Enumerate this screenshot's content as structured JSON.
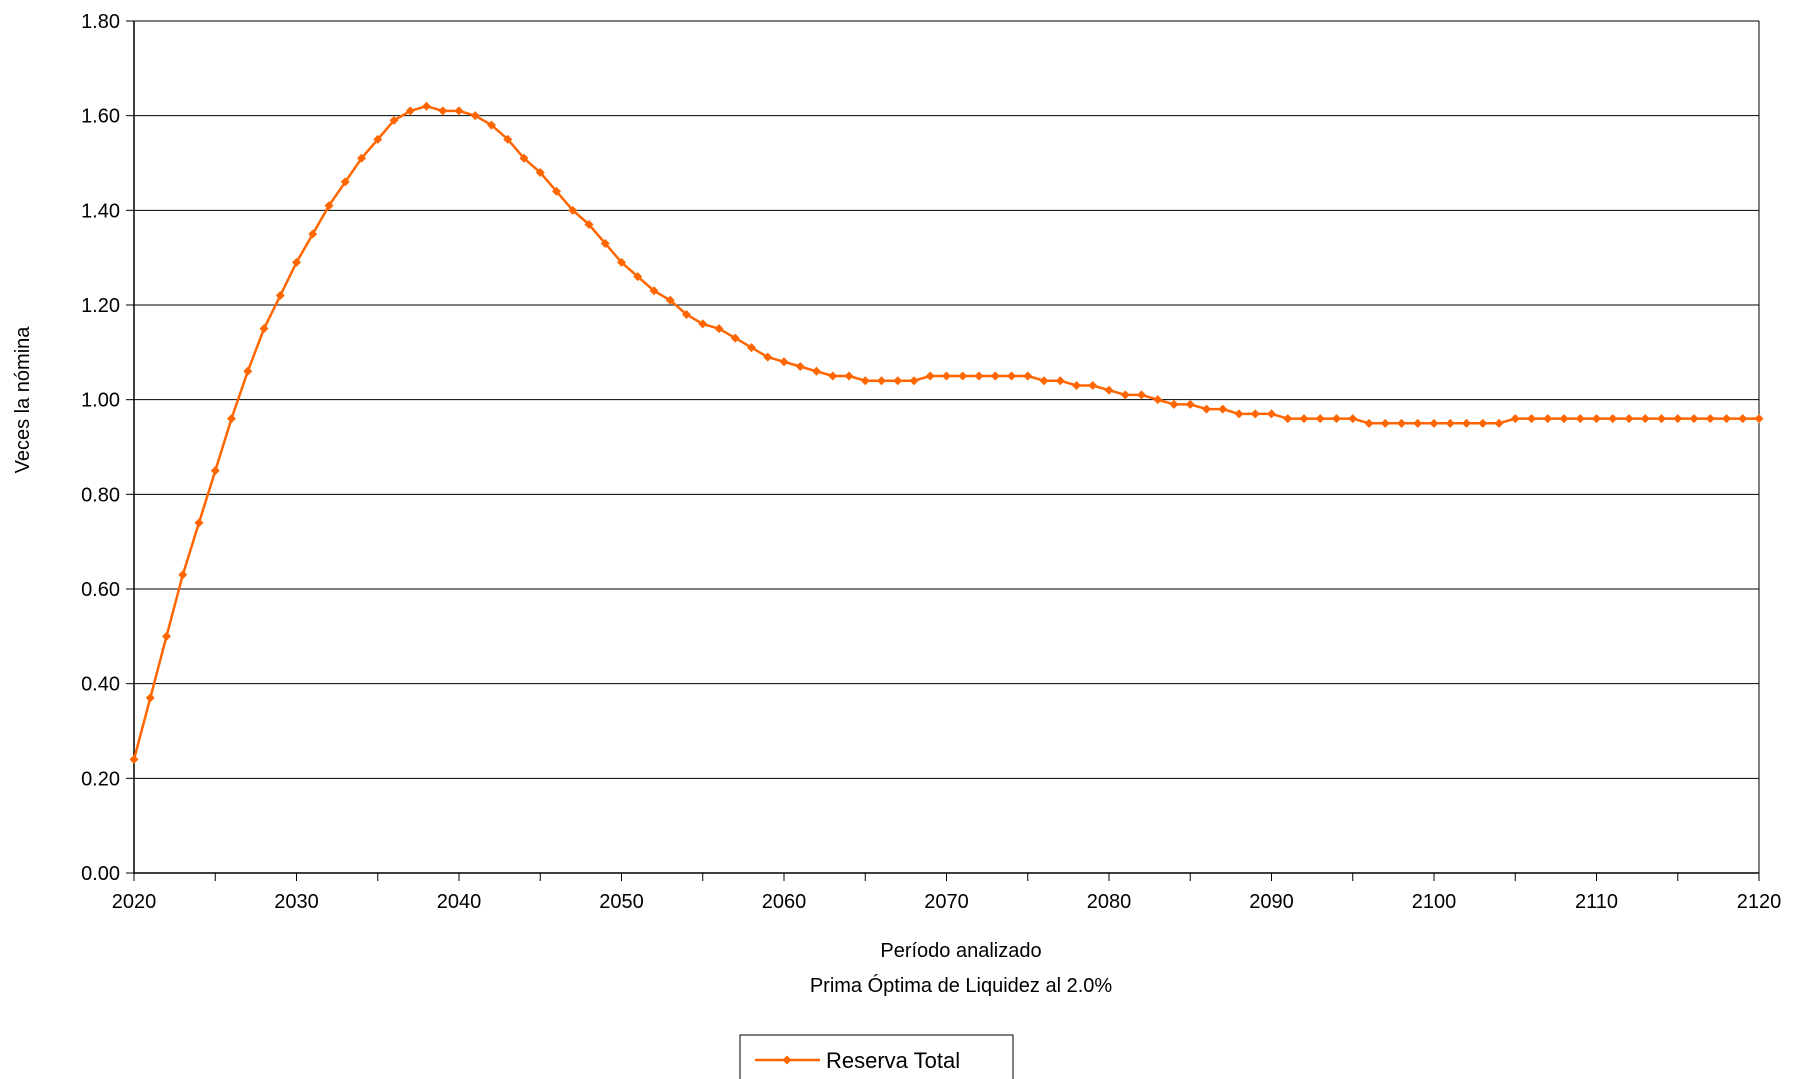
{
  "chart_data": {
    "type": "line",
    "xlabel": "Período analizado",
    "subtitle": "Prima Óptima de Liquidez al 2.0%",
    "ylabel": "Veces la nómina",
    "xlim": [
      2020,
      2120
    ],
    "ylim": [
      0,
      1.8
    ],
    "x_ticks": [
      2020,
      2030,
      2040,
      2050,
      2060,
      2070,
      2080,
      2090,
      2100,
      2110,
      2120
    ],
    "x_tick_labels": [
      "2020",
      "2030",
      "2040",
      "2050",
      "2060",
      "2070",
      "2080",
      "2090",
      "2100",
      "2110",
      "2120"
    ],
    "y_ticks": [
      0,
      0.2,
      0.4,
      0.6,
      0.8,
      1.0,
      1.2,
      1.4,
      1.6,
      1.8
    ],
    "y_tick_labels": [
      "0.00",
      "0.20",
      "0.40",
      "0.60",
      "0.80",
      "1.00",
      "1.20",
      "1.40",
      "1.60",
      "1.80"
    ],
    "grid": "horizontal",
    "legend_position": "bottom-center",
    "x": [
      2020,
      2021,
      2022,
      2023,
      2024,
      2025,
      2026,
      2027,
      2028,
      2029,
      2030,
      2031,
      2032,
      2033,
      2034,
      2035,
      2036,
      2037,
      2038,
      2039,
      2040,
      2041,
      2042,
      2043,
      2044,
      2045,
      2046,
      2047,
      2048,
      2049,
      2050,
      2051,
      2052,
      2053,
      2054,
      2055,
      2056,
      2057,
      2058,
      2059,
      2060,
      2061,
      2062,
      2063,
      2064,
      2065,
      2066,
      2067,
      2068,
      2069,
      2070,
      2071,
      2072,
      2073,
      2074,
      2075,
      2076,
      2077,
      2078,
      2079,
      2080,
      2081,
      2082,
      2083,
      2084,
      2085,
      2086,
      2087,
      2088,
      2089,
      2090,
      2091,
      2092,
      2093,
      2094,
      2095,
      2096,
      2097,
      2098,
      2099,
      2100,
      2101,
      2102,
      2103,
      2104,
      2105,
      2106,
      2107,
      2108,
      2109,
      2110,
      2111,
      2112,
      2113,
      2114,
      2115,
      2116,
      2117,
      2118,
      2119,
      2120
    ],
    "series": [
      {
        "name": "Reserva Total",
        "color": "#ff6600",
        "marker": "diamond",
        "values": [
          0.24,
          0.37,
          0.5,
          0.63,
          0.74,
          0.85,
          0.96,
          1.06,
          1.15,
          1.22,
          1.29,
          1.35,
          1.41,
          1.46,
          1.51,
          1.55,
          1.59,
          1.61,
          1.62,
          1.61,
          1.61,
          1.6,
          1.58,
          1.55,
          1.51,
          1.48,
          1.44,
          1.4,
          1.37,
          1.33,
          1.29,
          1.26,
          1.23,
          1.21,
          1.18,
          1.16,
          1.15,
          1.13,
          1.11,
          1.09,
          1.08,
          1.07,
          1.06,
          1.05,
          1.05,
          1.04,
          1.04,
          1.04,
          1.04,
          1.05,
          1.05,
          1.05,
          1.05,
          1.05,
          1.05,
          1.05,
          1.04,
          1.04,
          1.03,
          1.03,
          1.02,
          1.01,
          1.01,
          1.0,
          0.99,
          0.99,
          0.98,
          0.98,
          0.97,
          0.97,
          0.97,
          0.96,
          0.96,
          0.96,
          0.96,
          0.96,
          0.95,
          0.95,
          0.95,
          0.95,
          0.95,
          0.95,
          0.95,
          0.95,
          0.95,
          0.96,
          0.96,
          0.96,
          0.96,
          0.96,
          0.96,
          0.96,
          0.96,
          0.96,
          0.96,
          0.96,
          0.96,
          0.96,
          0.96,
          0.96,
          0.96
        ]
      }
    ]
  }
}
